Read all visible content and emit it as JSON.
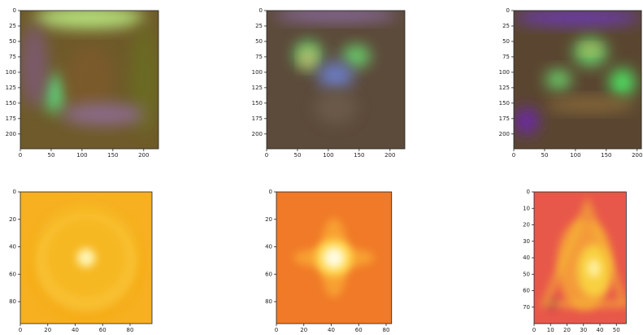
{
  "chart_data": [
    {
      "type": "image",
      "xlim": [
        0,
        224
      ],
      "ylim": [
        224,
        0
      ],
      "xticks": [
        0,
        50,
        100,
        150,
        200
      ],
      "yticks": [
        0,
        25,
        50,
        75,
        100,
        125,
        150,
        175,
        200
      ]
    },
    {
      "type": "image",
      "xlim": [
        0,
        224
      ],
      "ylim": [
        224,
        0
      ],
      "xticks": [
        0,
        50,
        100,
        150,
        200
      ],
      "yticks": [
        0,
        25,
        50,
        75,
        100,
        125,
        150,
        175,
        200
      ]
    },
    {
      "type": "image",
      "xlim": [
        0,
        207
      ],
      "ylim": [
        224,
        0
      ],
      "xticks": [
        0,
        50,
        100,
        150,
        200
      ],
      "yticks": [
        0,
        25,
        50,
        75,
        100,
        125,
        150,
        175,
        200
      ]
    },
    {
      "type": "image",
      "xlim": [
        0,
        96
      ],
      "ylim": [
        96,
        0
      ],
      "xticks": [
        0,
        20,
        40,
        60,
        80
      ],
      "yticks": [
        0,
        20,
        40,
        60,
        80
      ]
    },
    {
      "type": "image",
      "xlim": [
        0,
        84
      ],
      "ylim": [
        96,
        0
      ],
      "xticks": [
        0,
        20,
        40,
        60,
        80
      ],
      "yticks": [
        0,
        20,
        40,
        60,
        80
      ]
    },
    {
      "type": "image",
      "xlim": [
        0,
        56
      ],
      "ylim": [
        80,
        0
      ],
      "xticks": [
        0,
        10,
        20,
        30,
        40,
        50
      ],
      "yticks": [
        0,
        10,
        20,
        30,
        40,
        50,
        60,
        70
      ]
    }
  ]
}
